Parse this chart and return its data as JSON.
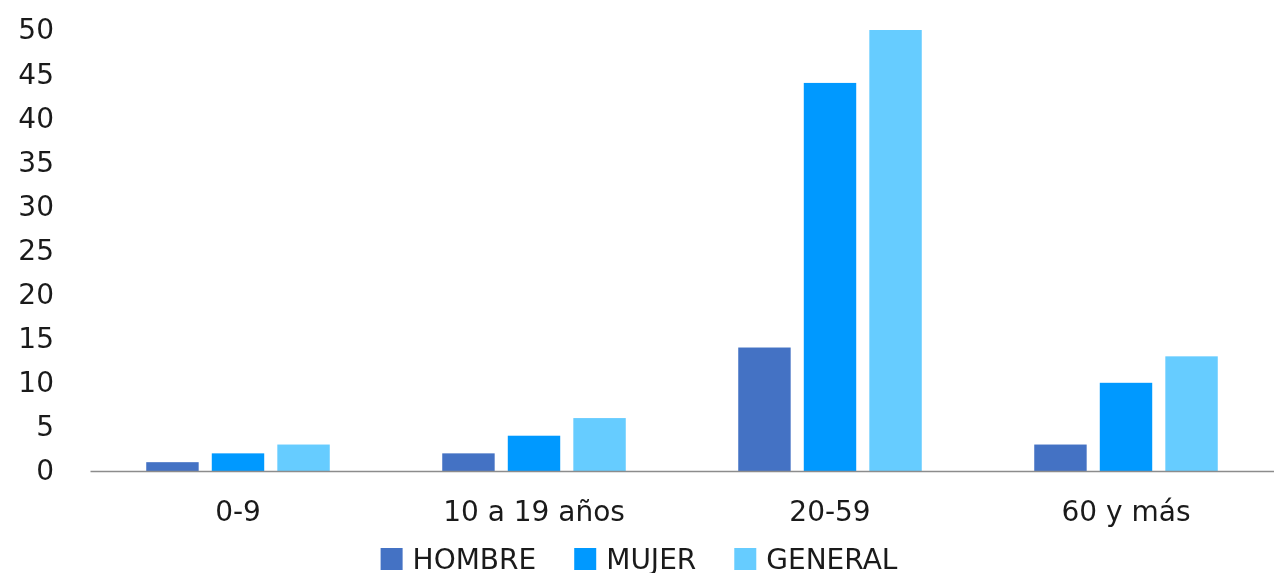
{
  "chart_data": {
    "type": "bar",
    "categories": [
      "0-9",
      "10 a 19 años",
      "20-59",
      "60 y más"
    ],
    "series": [
      {
        "name": "HOMBRE",
        "color": "#4472c4",
        "values": [
          1,
          2,
          14,
          3
        ]
      },
      {
        "name": "MUJER",
        "color": "#0099ff",
        "values": [
          2,
          4,
          44,
          10
        ]
      },
      {
        "name": "GENERAL",
        "color": "#66ccff",
        "values": [
          3,
          6,
          50,
          13
        ]
      }
    ],
    "ylim": [
      0,
      50
    ],
    "yticks": [
      0,
      5,
      10,
      15,
      20,
      25,
      30,
      35,
      40,
      45,
      50
    ],
    "grid": false,
    "legend": "bottom"
  }
}
